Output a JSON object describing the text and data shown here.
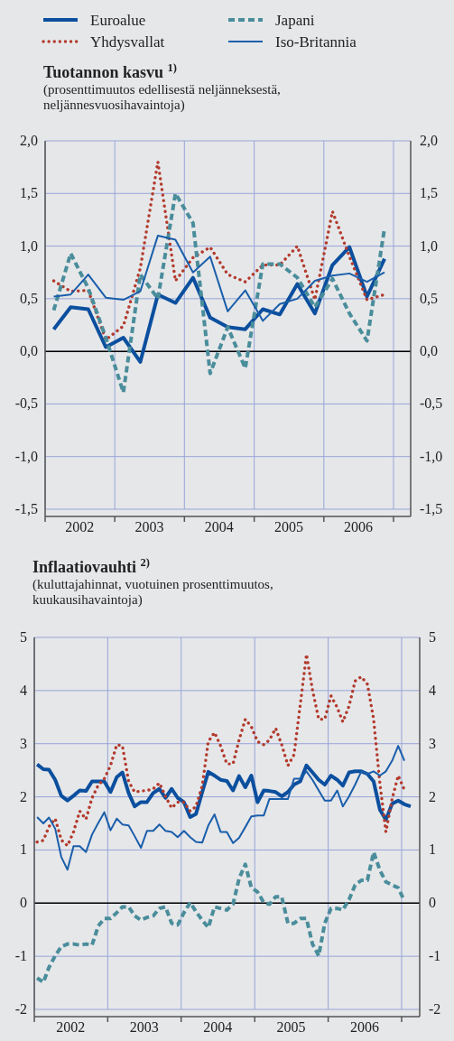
{
  "chart_data": [
    {
      "type": "line",
      "title": "Tuotannon kasvu $^{1)}$",
      "subtitle": "(prosenttimuutos edellisestä neljänneksestä, neljännesvuosihavaintoja)",
      "legend": "top",
      "grid": true,
      "x": [
        "2002-02-15",
        "2002-05-15",
        "2002-08-15",
        "2002-11-15",
        "2003-02-15",
        "2003-05-15",
        "2003-08-15",
        "2003-11-15",
        "2004-02-15",
        "2004-05-15",
        "2004-08-15",
        "2004-11-15",
        "2005-02-15",
        "2005-05-15",
        "2005-08-15",
        "2005-11-15",
        "2006-02-15",
        "2006-05-15",
        "2006-08-15",
        "2006-11-15"
      ],
      "xlim": [
        "2002-01-01",
        "2007-04-01"
      ],
      "xticks": [
        {
          "value": "2002-01-01",
          "label": null
        },
        {
          "value": "2002-07-01",
          "label": "2002"
        },
        {
          "value": "2003-01-01",
          "label": null
        },
        {
          "value": "2003-07-01",
          "label": "2003"
        },
        {
          "value": "2004-01-01",
          "label": null
        },
        {
          "value": "2004-07-01",
          "label": "2004"
        },
        {
          "value": "2005-01-01",
          "label": null
        },
        {
          "value": "2005-07-01",
          "label": "2005"
        },
        {
          "value": "2006-01-01",
          "label": null
        },
        {
          "value": "2006-07-01",
          "label": "2006"
        },
        {
          "value": "2007-01-01",
          "label": null
        }
      ],
      "ylim": [
        -1.5,
        2.0
      ],
      "yticks": [
        {
          "value": -1.5,
          "label": "-1,5"
        },
        {
          "value": -1.0,
          "label": "-1,0"
        },
        {
          "value": -0.5,
          "label": "-0,5"
        },
        {
          "value": 0,
          "label": "0,0"
        },
        {
          "value": 0.5,
          "label": "0,5"
        },
        {
          "value": 1.0,
          "label": "1,0"
        },
        {
          "value": 1.5,
          "label": "1,5"
        },
        {
          "value": 2.0,
          "label": "2,0"
        }
      ],
      "y2lim": [
        -1.5,
        2.0
      ],
      "y2ticks": [
        {
          "value": -1.5,
          "label": "-1,5"
        },
        {
          "value": -1.0,
          "label": "-1,0"
        },
        {
          "value": -0.5,
          "label": "-0,5"
        },
        {
          "value": 0,
          "label": "0,0"
        },
        {
          "value": 0.5,
          "label": "0,5"
        },
        {
          "value": 1.0,
          "label": "1,0"
        },
        {
          "value": 1.5,
          "label": "1,5"
        },
        {
          "value": 2.0,
          "label": "2,0"
        }
      ],
      "ref_lines": [
        {
          "axis": "y",
          "value": 0,
          "color": "#000000"
        }
      ],
      "series": [
        {
          "name": "Euroalue",
          "color": "#0b4f9e",
          "line_style": "solid",
          "values": [
            0.21,
            0.42,
            0.4,
            0.04,
            0.13,
            -0.1,
            0.54,
            0.46,
            0.7,
            0.32,
            0.23,
            0.21,
            0.4,
            0.35,
            0.64,
            0.36,
            0.82,
            0.99,
            0.52,
            0.88
          ]
        },
        {
          "name": "Yhdysvallat",
          "color": "#b23a2c",
          "line_style": "dotted",
          "values": [
            0.67,
            0.57,
            0.58,
            0.11,
            0.24,
            0.79,
            1.8,
            0.67,
            0.89,
            0.99,
            0.73,
            0.66,
            0.82,
            0.82,
            1.0,
            0.49,
            1.33,
            0.9,
            0.49,
            0.54
          ]
        },
        {
          "name": "Japani",
          "color": "#4a8d9b",
          "line_style": "dashed",
          "values": [
            0.39,
            0.93,
            0.6,
            0.13,
            -0.39,
            0.73,
            0.5,
            1.5,
            1.22,
            -0.21,
            0.23,
            -0.16,
            0.83,
            0.83,
            0.7,
            0.42,
            0.69,
            0.36,
            0.1,
            1.17
          ]
        },
        {
          "name": "Iso-Britannia",
          "color": "#1a5eaa",
          "line_style": "solid",
          "values": [
            0.52,
            0.54,
            0.73,
            0.51,
            0.49,
            0.57,
            1.1,
            1.06,
            0.75,
            0.9,
            0.38,
            0.58,
            0.29,
            0.45,
            0.5,
            0.67,
            0.72,
            0.74,
            0.66,
            0.75
          ]
        }
      ]
    },
    {
      "type": "line",
      "title": "Inflaatiovauhti $^{2)}$",
      "subtitle": "(kuluttajahinnat, vuotuinen prosenttimuutos, kuukausihavaintoja)",
      "grid": true,
      "x": [
        "2002-01-15",
        "2002-02-15",
        "2002-03-15",
        "2002-04-15",
        "2002-05-15",
        "2002-06-15",
        "2002-07-15",
        "2002-08-15",
        "2002-09-15",
        "2002-10-15",
        "2002-11-15",
        "2002-12-15",
        "2003-01-15",
        "2003-02-15",
        "2003-03-15",
        "2003-04-15",
        "2003-05-15",
        "2003-06-15",
        "2003-07-15",
        "2003-08-15",
        "2003-09-15",
        "2003-10-15",
        "2003-11-15",
        "2003-12-15",
        "2004-01-15",
        "2004-02-15",
        "2004-03-15",
        "2004-04-15",
        "2004-05-15",
        "2004-06-15",
        "2004-07-15",
        "2004-08-15",
        "2004-09-15",
        "2004-10-15",
        "2004-11-15",
        "2004-12-15",
        "2005-01-15",
        "2005-02-15",
        "2005-03-15",
        "2005-04-15",
        "2005-05-15",
        "2005-06-15",
        "2005-07-15",
        "2005-08-15",
        "2005-09-15",
        "2005-10-15",
        "2005-11-15",
        "2005-12-15",
        "2006-01-15",
        "2006-02-15",
        "2006-03-15",
        "2006-04-15",
        "2006-05-15",
        "2006-06-15",
        "2006-07-15",
        "2006-08-15",
        "2006-09-15",
        "2006-10-15",
        "2006-11-15",
        "2006-12-15",
        "2007-01-15",
        "2007-02-15"
      ],
      "xlim": [
        "2002-01-01",
        "2007-04-01"
      ],
      "xticks": [
        {
          "value": "2002-01-01",
          "label": null
        },
        {
          "value": "2002-07-01",
          "label": "2002"
        },
        {
          "value": "2003-01-01",
          "label": null
        },
        {
          "value": "2003-07-01",
          "label": "2003"
        },
        {
          "value": "2004-01-01",
          "label": null
        },
        {
          "value": "2004-07-01",
          "label": "2004"
        },
        {
          "value": "2005-01-01",
          "label": null
        },
        {
          "value": "2005-07-01",
          "label": "2005"
        },
        {
          "value": "2006-01-01",
          "label": null
        },
        {
          "value": "2006-07-01",
          "label": "2006"
        },
        {
          "value": "2007-01-01",
          "label": null
        }
      ],
      "ylim": [
        -2,
        5
      ],
      "yticks": [
        -2,
        -1,
        0,
        1,
        2,
        3,
        4,
        5
      ],
      "y2lim": [
        -2,
        5
      ],
      "y2ticks": [
        -2,
        -1,
        0,
        1,
        2,
        3,
        4,
        5
      ],
      "ref_lines": [
        {
          "axis": "y",
          "value": 0,
          "color": "#000000"
        }
      ],
      "series": [
        {
          "color": "#0b4f9e",
          "line_style": "solid",
          "values": [
            2.61,
            2.52,
            2.51,
            2.32,
            2.02,
            1.93,
            2.02,
            2.12,
            2.11,
            2.29,
            2.29,
            2.29,
            2.09,
            2.37,
            2.46,
            2.07,
            1.82,
            1.9,
            1.9,
            2.07,
            2.15,
            1.98,
            2.15,
            1.98,
            1.9,
            1.62,
            1.68,
            2.09,
            2.47,
            2.4,
            2.32,
            2.3,
            2.12,
            2.39,
            2.18,
            2.4,
            1.9,
            2.12,
            2.11,
            2.09,
            2.01,
            2.09,
            2.23,
            2.29,
            2.59,
            2.46,
            2.32,
            2.23,
            2.4,
            2.32,
            2.21,
            2.46,
            2.48,
            2.48,
            2.43,
            2.29,
            1.76,
            1.57,
            1.87,
            1.93,
            1.86,
            1.82
          ]
        },
        {
          "color": "#b23a2c",
          "line_style": "dotted",
          "values": [
            1.15,
            1.18,
            1.44,
            1.59,
            1.19,
            1.08,
            1.34,
            1.73,
            1.58,
            1.98,
            2.22,
            2.34,
            2.59,
            2.98,
            2.96,
            2.29,
            2.09,
            2.11,
            2.12,
            2.15,
            2.26,
            2.01,
            1.79,
            1.9,
            1.9,
            1.73,
            1.82,
            2.21,
            3.04,
            3.21,
            2.96,
            2.62,
            2.62,
            3.07,
            3.46,
            3.32,
            3.04,
            2.98,
            3.07,
            3.29,
            2.98,
            2.59,
            2.79,
            3.73,
            4.68,
            4.01,
            3.46,
            3.46,
            3.9,
            3.68,
            3.41,
            3.71,
            4.18,
            4.26,
            4.12,
            3.46,
            2.26,
            1.34,
            1.96,
            2.4,
            2.13,
            null
          ]
        },
        {
          "color": "#4a8d9b",
          "line_style": "dashed",
          "values": [
            -1.41,
            -1.49,
            -1.21,
            -0.99,
            -0.82,
            -0.77,
            -0.77,
            -0.79,
            -0.77,
            -0.79,
            -0.43,
            -0.29,
            -0.29,
            -0.18,
            -0.07,
            -0.07,
            -0.24,
            -0.32,
            -0.27,
            -0.24,
            -0.1,
            -0.07,
            -0.38,
            -0.41,
            -0.18,
            0.01,
            -0.16,
            -0.32,
            -0.46,
            -0.07,
            -0.1,
            -0.13,
            -0.02,
            0.46,
            0.73,
            0.29,
            0.21,
            0.01,
            -0.02,
            0.12,
            0.12,
            -0.38,
            -0.38,
            -0.29,
            -0.29,
            -0.77,
            -0.99,
            -0.38,
            -0.1,
            -0.1,
            -0.13,
            0.07,
            0.34,
            0.43,
            0.43,
            0.96,
            0.62,
            0.4,
            0.34,
            0.29,
            0.04,
            null
          ]
        },
        {
          "color": "#1a5eaa",
          "line_style": "solid",
          "values": [
            1.62,
            1.5,
            1.61,
            1.4,
            0.87,
            0.63,
            1.07,
            1.07,
            0.96,
            1.29,
            1.51,
            1.71,
            1.37,
            1.59,
            1.48,
            1.46,
            1.26,
            1.04,
            1.36,
            1.36,
            1.48,
            1.36,
            1.34,
            1.24,
            1.36,
            1.24,
            1.15,
            1.14,
            1.46,
            1.67,
            1.34,
            1.34,
            1.13,
            1.23,
            1.43,
            1.63,
            1.65,
            1.65,
            1.96,
            1.96,
            1.96,
            1.96,
            2.34,
            2.34,
            2.48,
            2.32,
            2.12,
            1.93,
            1.93,
            2.12,
            1.82,
            2.01,
            2.23,
            2.48,
            2.43,
            2.48,
            2.4,
            2.48,
            2.68,
            2.96,
            2.68,
            null
          ]
        }
      ]
    }
  ]
}
